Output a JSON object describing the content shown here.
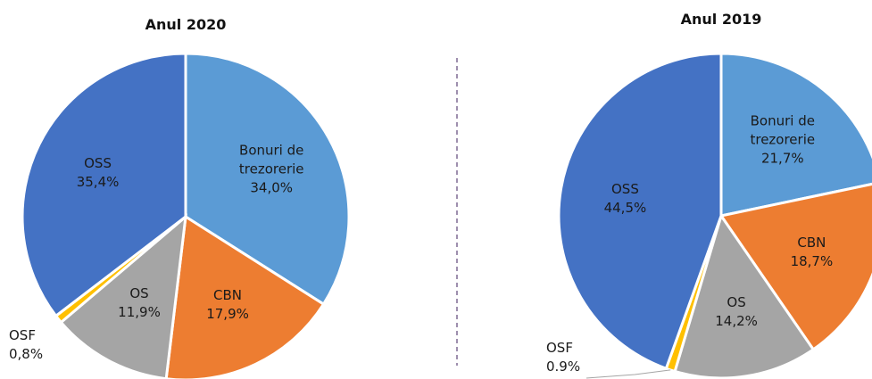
{
  "chart_data": [
    {
      "type": "pie",
      "title": "Anul 2020",
      "categories": [
        "Bonuri de trezorerie",
        "CBN",
        "OS",
        "OSF",
        "OSS"
      ],
      "values": [
        34.0,
        17.9,
        11.9,
        0.8,
        35.4
      ],
      "value_labels": [
        "34,0%",
        "17,9%",
        "11,9%",
        "0,8%",
        "35,4%"
      ],
      "colors": [
        "#5b9bd5",
        "#ed7d31",
        "#a5a5a5",
        "#ffc000",
        "#4472c4"
      ]
    },
    {
      "type": "pie",
      "title": "Anul 2019",
      "categories": [
        "Bonuri de trezorerie",
        "CBN",
        "OS",
        "OSF",
        "OSS"
      ],
      "values": [
        21.7,
        18.7,
        14.2,
        0.9,
        44.5
      ],
      "value_labels": [
        "21,7%",
        "18,7%",
        "14,2%",
        "0.9%",
        "44,5%"
      ],
      "colors": [
        "#5b9bd5",
        "#ed7d31",
        "#a5a5a5",
        "#ffc000",
        "#4472c4"
      ]
    }
  ]
}
